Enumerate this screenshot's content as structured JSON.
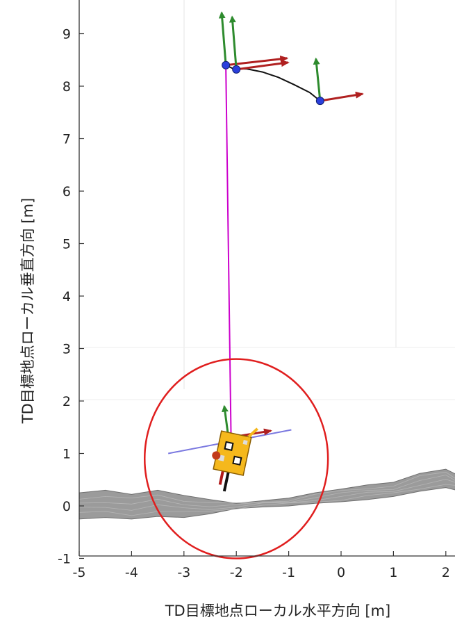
{
  "chart_data": {
    "type": "line",
    "xlabel": "TD目標地点ローカル水平方向 [m]",
    "ylabel": "TD目標地点ローカル垂直方向 [m]",
    "xlim": [
      -5,
      2.2
    ],
    "ylim": [
      -1,
      9.6
    ],
    "x_ticks": [
      "-5",
      "-4",
      "-3",
      "-2",
      "-1",
      "0",
      "1",
      "2"
    ],
    "y_ticks": [
      "-1",
      "0",
      "1",
      "2",
      "3",
      "4",
      "5",
      "6",
      "7",
      "8",
      "9"
    ],
    "grid": "partial",
    "series": [
      {
        "name": "",
        "color": "#cc00cc",
        "x": [
          -2.2,
          -2.1
        ],
        "y": [
          8.4,
          1.2
        ]
      },
      {
        "name": "",
        "color": "#111111",
        "x": [
          -2.2,
          -2.05,
          -1.8,
          -1.5,
          -1.2,
          -0.9,
          -0.6,
          -0.4
        ],
        "y": [
          8.4,
          8.33,
          8.33,
          8.27,
          8.17,
          8.03,
          7.88,
          7.72
        ]
      }
    ],
    "waypoints": [
      {
        "x": -2.2,
        "y": 8.4,
        "color": "#2a3fdc"
      },
      {
        "x": -2.0,
        "y": 8.32,
        "color": "#2a3fdc"
      },
      {
        "x": -0.4,
        "y": 7.72,
        "color": "#2a3fdc"
      }
    ],
    "frames": [
      {
        "x": -2.2,
        "y": 8.4,
        "up": 1.0,
        "right": 1.3
      },
      {
        "x": -2.0,
        "y": 8.32,
        "up": 1.0,
        "right": 1.1
      },
      {
        "x": -0.4,
        "y": 7.72,
        "up": 0.8,
        "right": 0.9
      },
      {
        "x": -2.15,
        "y": 1.3,
        "up": 0.6,
        "right": 0.9
      }
    ],
    "terrain": {
      "color": "#8a8a8a",
      "x": [
        -5,
        -4.5,
        -4,
        -3.5,
        -3,
        -2.5,
        -2,
        -1.5,
        -1,
        -0.5,
        0,
        0.5,
        1,
        1.5,
        2,
        2.2
      ],
      "top": [
        0.25,
        0.3,
        0.22,
        0.3,
        0.2,
        0.12,
        0.05,
        0.1,
        0.15,
        0.25,
        0.32,
        0.4,
        0.45,
        0.62,
        0.7,
        0.6
      ],
      "bottom": [
        -0.25,
        -0.22,
        -0.25,
        -0.2,
        -0.22,
        -0.15,
        -0.05,
        -0.02,
        0.0,
        0.05,
        0.08,
        0.12,
        0.18,
        0.28,
        0.35,
        0.3
      ]
    },
    "contact_line": {
      "x": [
        -3.3,
        -0.95
      ],
      "y": [
        1.0,
        1.45
      ],
      "color": "#7a78e0"
    },
    "lander": {
      "x": -2.05,
      "y": 1.0,
      "tilt_deg": 12,
      "color": "#f5b81c"
    },
    "highlight_circle": {
      "center_x": -2.0,
      "center_y": 0.9,
      "radius_x": 1.75,
      "radius_y": 1.9,
      "color": "#e01e1e"
    }
  }
}
